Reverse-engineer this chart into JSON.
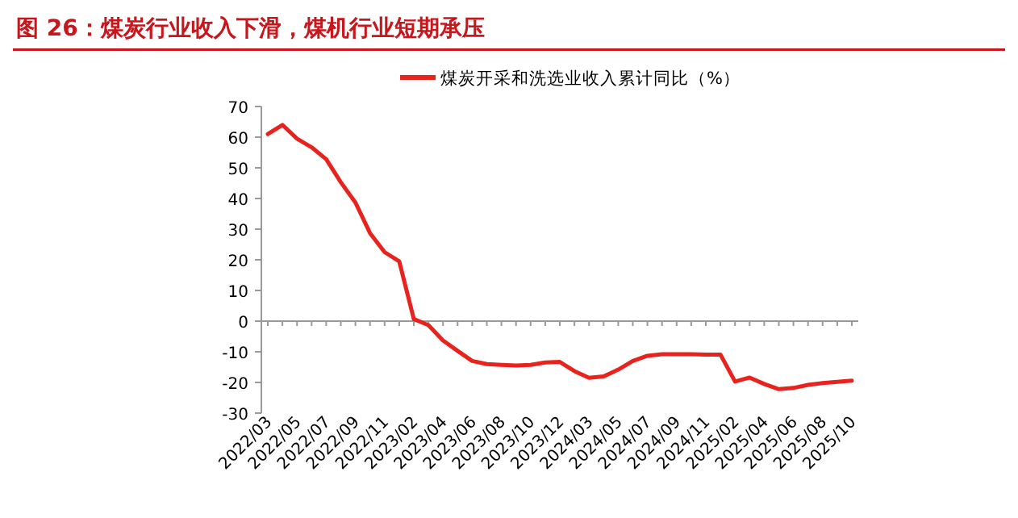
{
  "chart_data": {
    "type": "line",
    "title": "图 26：煤炭行业收入下滑，煤机行业短期承压",
    "categories": [
      "2022/03",
      null,
      "2022/05",
      null,
      "2022/07",
      null,
      "2022/09",
      null,
      "2022/11",
      null,
      "2023/02",
      null,
      "2023/04",
      null,
      "2023/06",
      null,
      "2023/08",
      null,
      "2023/10",
      null,
      "2023/12",
      null,
      "2024/03",
      null,
      "2024/05",
      null,
      "2024/07",
      null,
      "2024/09",
      null,
      "2024/11",
      null,
      "2025/02",
      null,
      "2025/04",
      null,
      "2025/06",
      null,
      "2025/08",
      null,
      "2025/10"
    ],
    "series": [
      {
        "name": "煤炭开采和洗选业收入累计同比（%）",
        "color": "#e8231e",
        "values": [
          61,
          64,
          59.5,
          56.7,
          52.8,
          45.3,
          38.7,
          28.7,
          22.5,
          19.5,
          0.7,
          -1.3,
          -6.3,
          -9.7,
          -13,
          -14,
          -14.3,
          -14.5,
          -14.3,
          -13.5,
          -13.3,
          -16.3,
          -18.5,
          -18,
          -15.8,
          -13,
          -11.3,
          -10.8,
          -10.8,
          -10.8,
          -10.9,
          -10.9,
          -19.7,
          -18.4,
          -20.5,
          -22.2,
          -21.8,
          -20.8,
          -20.2,
          -19.8,
          -19.4
        ]
      }
    ],
    "ylim": [
      -30,
      70
    ],
    "yticks": [
      -30,
      -20,
      -10,
      0,
      10,
      20,
      30,
      40,
      50,
      60,
      70
    ],
    "legend": "top",
    "marker": "none",
    "line_style": "solid"
  }
}
